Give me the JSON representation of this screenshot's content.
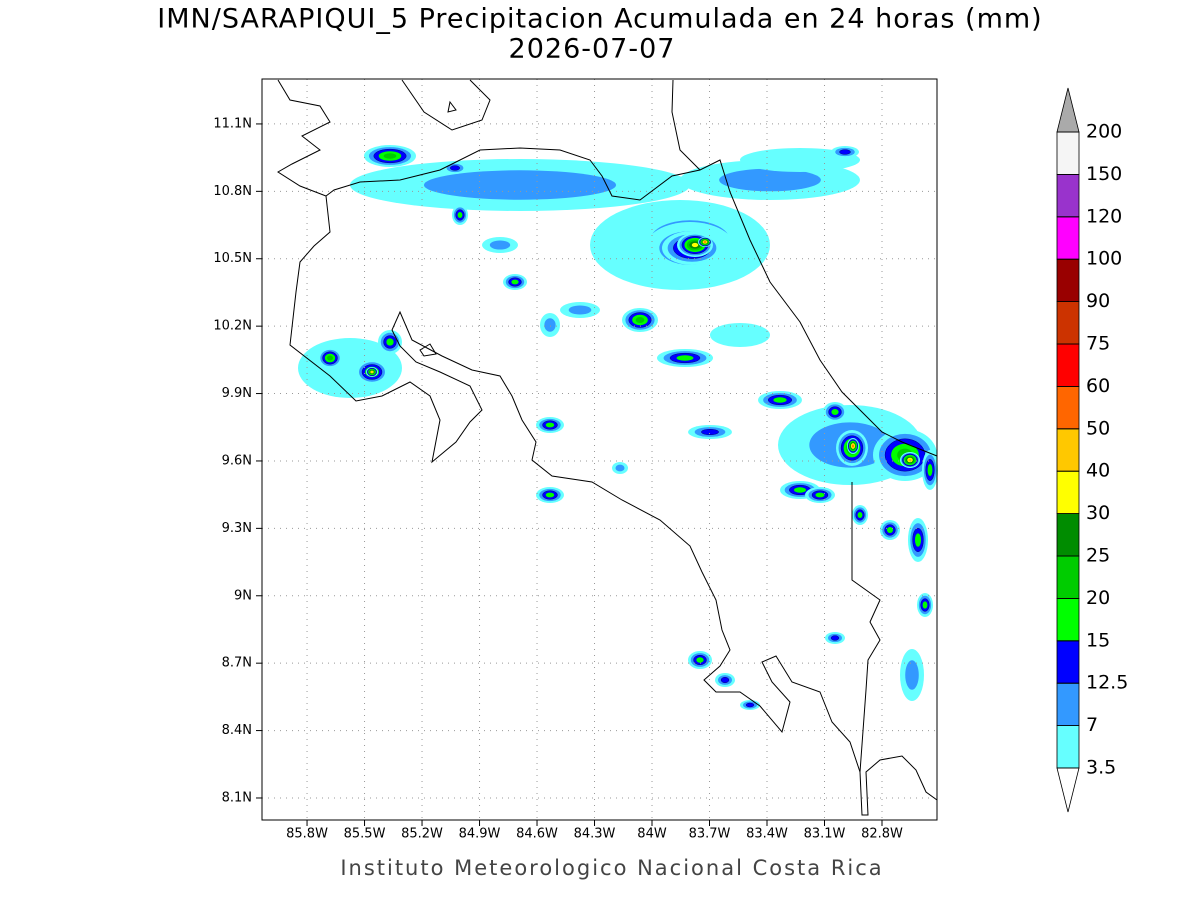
{
  "map": {
    "title": "IMN/SARAPIQUI_5 Precipitacion Acumulada en 24 horas (mm)",
    "subtitle": "2026-07-07",
    "footer": "Instituto Meteorologico Nacional Costa Rica",
    "xlim": [
      -86.035,
      -82.513
    ],
    "ylim": [
      8.002,
      11.3
    ],
    "xticks": [
      {
        "value": -85.8,
        "label": "85.8W"
      },
      {
        "value": -85.5,
        "label": "85.5W"
      },
      {
        "value": -85.2,
        "label": "85.2W"
      },
      {
        "value": -84.9,
        "label": "84.9W"
      },
      {
        "value": -84.6,
        "label": "84.6W"
      },
      {
        "value": -84.3,
        "label": "84.3W"
      },
      {
        "value": -84,
        "label": "84W"
      },
      {
        "value": -83.7,
        "label": "83.7W"
      },
      {
        "value": -83.4,
        "label": "83.4W"
      },
      {
        "value": -83.1,
        "label": "83.1W"
      },
      {
        "value": -82.8,
        "label": "82.8W"
      }
    ],
    "yticks": [
      {
        "value": 8.1,
        "label": "8.1N"
      },
      {
        "value": 8.4,
        "label": "8.4N"
      },
      {
        "value": 8.7,
        "label": "8.7N"
      },
      {
        "value": 9,
        "label": "9N"
      },
      {
        "value": 9.3,
        "label": "9.3N"
      },
      {
        "value": 9.6,
        "label": "9.6N"
      },
      {
        "value": 9.9,
        "label": "9.9N"
      },
      {
        "value": 10.2,
        "label": "10.2N"
      },
      {
        "value": 10.5,
        "label": "10.5N"
      },
      {
        "value": 10.8,
        "label": "10.8N"
      },
      {
        "value": 11.1,
        "label": "11.1N"
      }
    ],
    "grid": true,
    "colorbar": {
      "levels": [
        3.5,
        7,
        12.5,
        15,
        20,
        25,
        30,
        40,
        50,
        60,
        75,
        90,
        100,
        120,
        150,
        200
      ],
      "colors": [
        "#66ffff",
        "#3399ff",
        "#0000ff",
        "#00ff00",
        "#00cc00",
        "#008c00",
        "#ffff00",
        "#ffc800",
        "#ff6600",
        "#ff0000",
        "#cc3300",
        "#990000",
        "#ff00ff",
        "#9933cc",
        "#f5f5f5"
      ],
      "under_color": "#ffffff",
      "over_color": "#aaaaaa"
    }
  }
}
